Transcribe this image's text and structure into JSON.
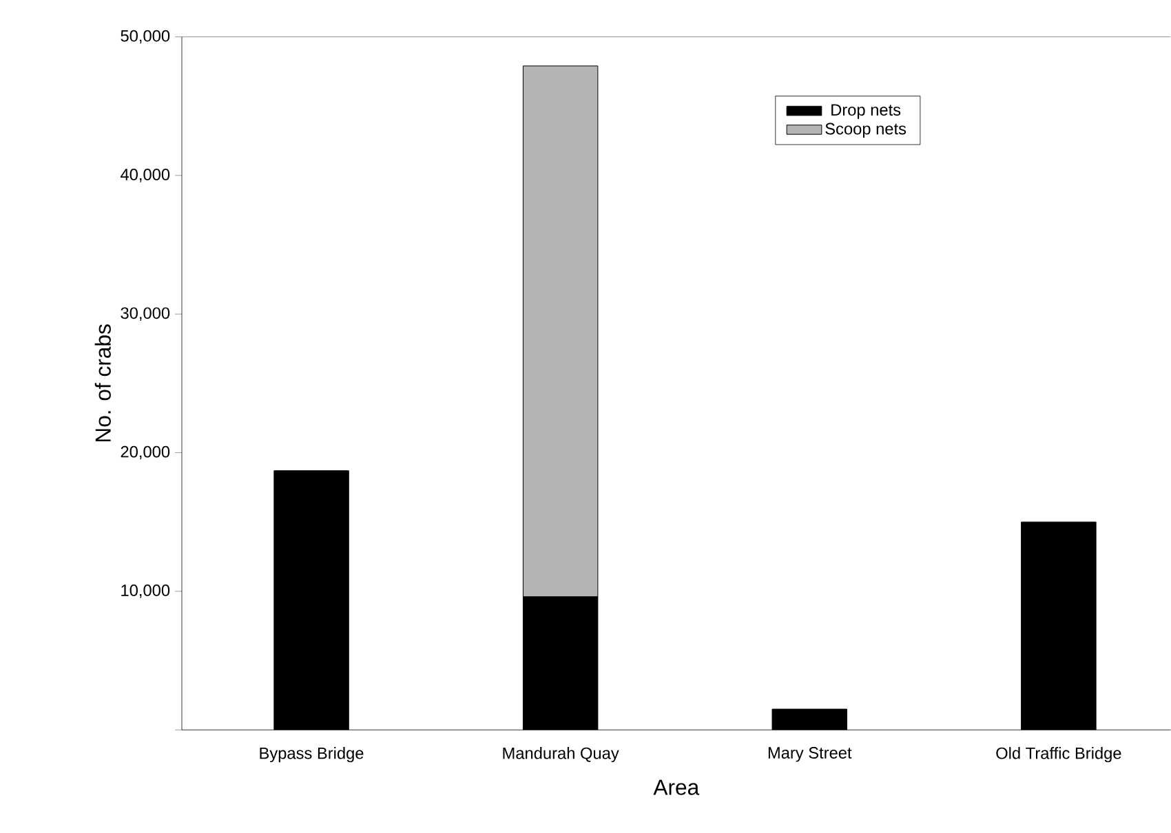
{
  "chart_data": {
    "type": "bar",
    "stacked": true,
    "xlabel": "Area",
    "ylabel": "No. of crabs",
    "categories": [
      "Bypass Bridge",
      "Mandurah Quay",
      "Mary Street",
      "Old Traffic Bridge"
    ],
    "series": [
      {
        "name": "Drop nets",
        "color": "#000000",
        "values": [
          18700,
          9600,
          1500,
          15000
        ]
      },
      {
        "name": "Scoop nets",
        "color": "#b4b4b4",
        "values": [
          0,
          38300,
          0,
          0
        ]
      }
    ],
    "ylim": [
      0,
      50000
    ],
    "yticks": [
      {
        "value": 0,
        "label": null
      },
      {
        "value": 10000,
        "label": "10,000"
      },
      {
        "value": 20000,
        "label": "20,000"
      },
      {
        "value": 30000,
        "label": "30,000"
      },
      {
        "value": 40000,
        "label": "40,000"
      },
      {
        "value": 50000,
        "label": "50,000"
      }
    ],
    "legend": "top right",
    "grid": false
  }
}
